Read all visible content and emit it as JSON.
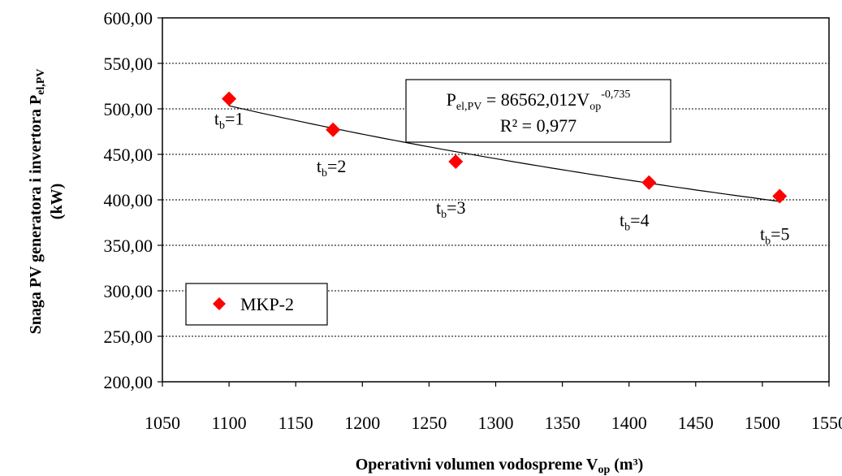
{
  "chart_data": {
    "type": "scatter",
    "xlabel": {
      "main": "Operativni volumen vodospreme V",
      "sub": "op",
      "tail": " (m³)"
    },
    "ylabel": {
      "line1_main": "Snaga PV  generatora i invertora P",
      "line1_sub": "el,PV",
      "line2": "(kW)"
    },
    "xlim": [
      1050,
      1550
    ],
    "ylim": [
      200,
      600
    ],
    "x_ticks": [
      "1050",
      "1100",
      "1150",
      "1200",
      "1250",
      "1300",
      "1350",
      "1400",
      "1450",
      "1500",
      "1550"
    ],
    "y_ticks": [
      "200,00",
      "250,00",
      "300,00",
      "350,00",
      "400,00",
      "450,00",
      "500,00",
      "550,00",
      "600,00"
    ],
    "grid": "horizontal-dotted",
    "series": [
      {
        "name": "MKP-2",
        "color": "#ff0000",
        "marker": "diamond",
        "x": [
          1100,
          1178,
          1270,
          1415,
          1513
        ],
        "y": [
          511,
          477,
          442,
          419,
          404
        ],
        "point_labels": [
          "1",
          "2",
          "3",
          "4",
          "5"
        ]
      }
    ],
    "point_label_prefix": {
      "main": "t",
      "sub": "b",
      "eq": "="
    },
    "trendline": {
      "type": "power",
      "a": 86562.012,
      "b": -0.735,
      "x_range": [
        1100,
        1513
      ]
    },
    "equation": {
      "p": "P",
      "p_sub": "el,PV",
      "eq": " = 86562,012V",
      "v_sub": "op",
      "exp": "-0,735",
      "r2": "R² = 0,977"
    },
    "legend": {
      "label": "MKP-2",
      "position": "bottom-left"
    }
  }
}
